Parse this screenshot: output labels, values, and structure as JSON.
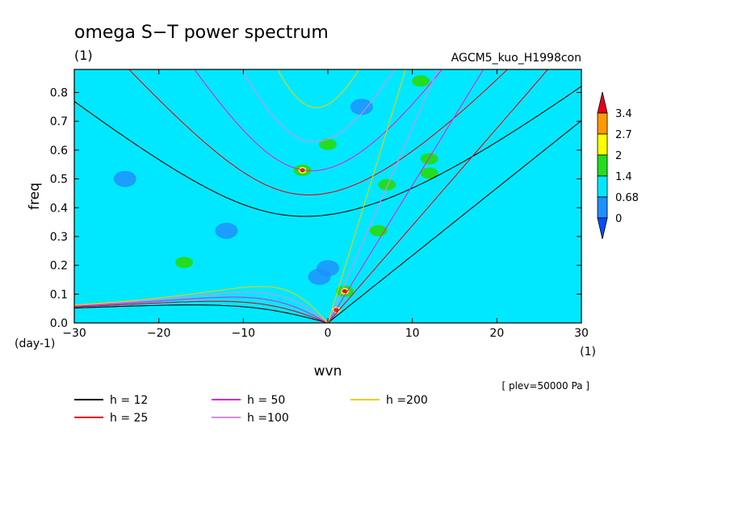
{
  "chart_data": {
    "type": "heatmap",
    "title": "omega S−T power spectrum",
    "subtitle_left": "(1)",
    "subtitle_right": "AGCM5_kuo_H1998con",
    "xlabel": "wvn",
    "ylabel": "freq",
    "x_unit": "(1)",
    "y_unit": "(day-1)",
    "xlim": [
      -30,
      30
    ],
    "ylim": [
      0,
      0.88
    ],
    "x_ticks": [
      "−30",
      "−20",
      "−10",
      "0",
      "10",
      "20",
      "30"
    ],
    "y_ticks": [
      "0.0",
      "0.1",
      "0.2",
      "0.3",
      "0.4",
      "0.5",
      "0.6",
      "0.7",
      "0.8"
    ],
    "note": "[ plev=50000 Pa ]",
    "colorbar": {
      "levels": [
        "3.4",
        "2.7",
        "2",
        "1.4",
        "0.68",
        "0"
      ],
      "colors": [
        "#e8001c",
        "#ff9a00",
        "#ffff00",
        "#22dd22",
        "#00e8ff",
        "#1e90ff",
        "#0050ff"
      ]
    },
    "background_level_color": "#00e8ff",
    "dispersion_curves": [
      {
        "label": "h = 12",
        "color": "#000000"
      },
      {
        "label": "h = 25",
        "color": "#e8001c"
      },
      {
        "label": "h = 50",
        "color": "#e020e0"
      },
      {
        "label": "h =100",
        "color": "#d88be8"
      },
      {
        "label": "h =200",
        "color": "#e8d000"
      }
    ],
    "green_patches": [
      {
        "x": -3,
        "y": 0.53
      },
      {
        "x": 2,
        "y": 0.11
      },
      {
        "x": 6,
        "y": 0.32
      },
      {
        "x": 12,
        "y": 0.57
      },
      {
        "x": 12,
        "y": 0.52
      },
      {
        "x": 0,
        "y": 0.62
      },
      {
        "x": 11,
        "y": 0.84
      },
      {
        "x": -17,
        "y": 0.21
      },
      {
        "x": 7,
        "y": 0.48
      }
    ],
    "blue_patches": [
      {
        "x": 0,
        "y": 0.19
      },
      {
        "x": -1,
        "y": 0.16
      },
      {
        "x": -12,
        "y": 0.32
      },
      {
        "x": -24,
        "y": 0.5
      },
      {
        "x": 4,
        "y": 0.75
      }
    ],
    "red_peaks": [
      {
        "x": 1,
        "y": 0.045
      },
      {
        "x": 2,
        "y": 0.11
      },
      {
        "x": -3,
        "y": 0.53
      }
    ]
  }
}
